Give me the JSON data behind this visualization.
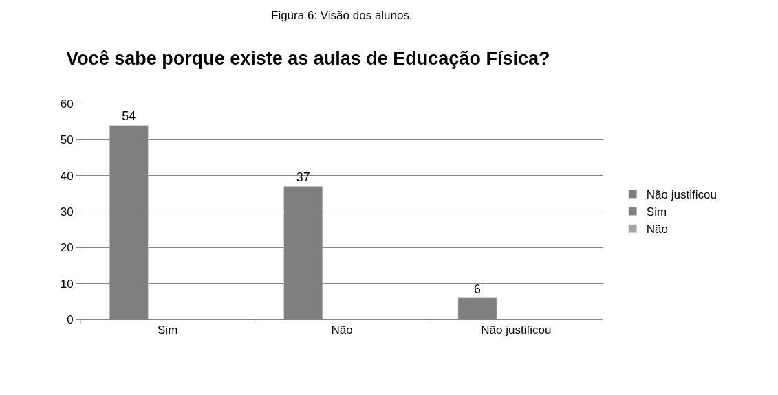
{
  "chart_data": {
    "type": "bar",
    "title": "Você sabe porque existe as aulas de Educação Física?",
    "annotations": [
      "Figura 6: Visão dos alunos."
    ],
    "categories": [
      "Sim",
      "Não",
      "Não justificou"
    ],
    "series": [
      {
        "name": "Não justificou",
        "color": "#7f7f7f",
        "values": [
          54,
          37,
          6
        ]
      },
      {
        "name": "Sim",
        "color": "#7f7f7f",
        "values": [
          null,
          null,
          null
        ]
      },
      {
        "name": "Não",
        "color": "#a5a5a5",
        "values": [
          null,
          null,
          null
        ]
      }
    ],
    "ylim": [
      0,
      60
    ],
    "yticks": [
      0,
      10,
      20,
      30,
      40,
      50,
      60
    ],
    "grid": "y",
    "legend": "right",
    "data_labels": true
  }
}
